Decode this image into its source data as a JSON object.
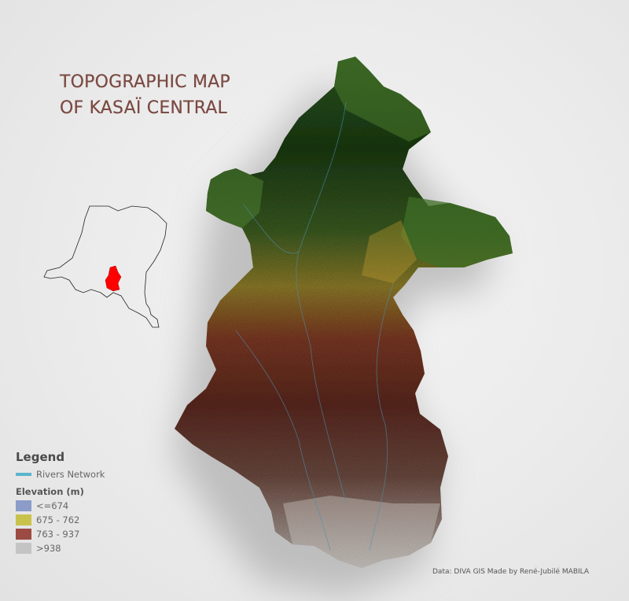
{
  "title": {
    "line1": "TOPOGRAPHIC MAP",
    "line2": "OF KASAÏ CENTRAL"
  },
  "inset": {
    "highlight_color": "#ff0000"
  },
  "legend": {
    "heading": "Legend",
    "rivers": {
      "label": "Rivers Network",
      "color": "#5ab4cc"
    },
    "elevation_heading": "Elevation (m)",
    "classes": [
      {
        "label": "<=674",
        "color": "#8b9cc9"
      },
      {
        "label": "675 - 762",
        "color": "#c9c24a"
      },
      {
        "label": "763 - 937",
        "color": "#9c4a44"
      },
      {
        "label": ">938",
        "color": "#c4c4c4"
      }
    ]
  },
  "credit": "Data: DIVA GIS Made by René-Jubilé MABILA"
}
